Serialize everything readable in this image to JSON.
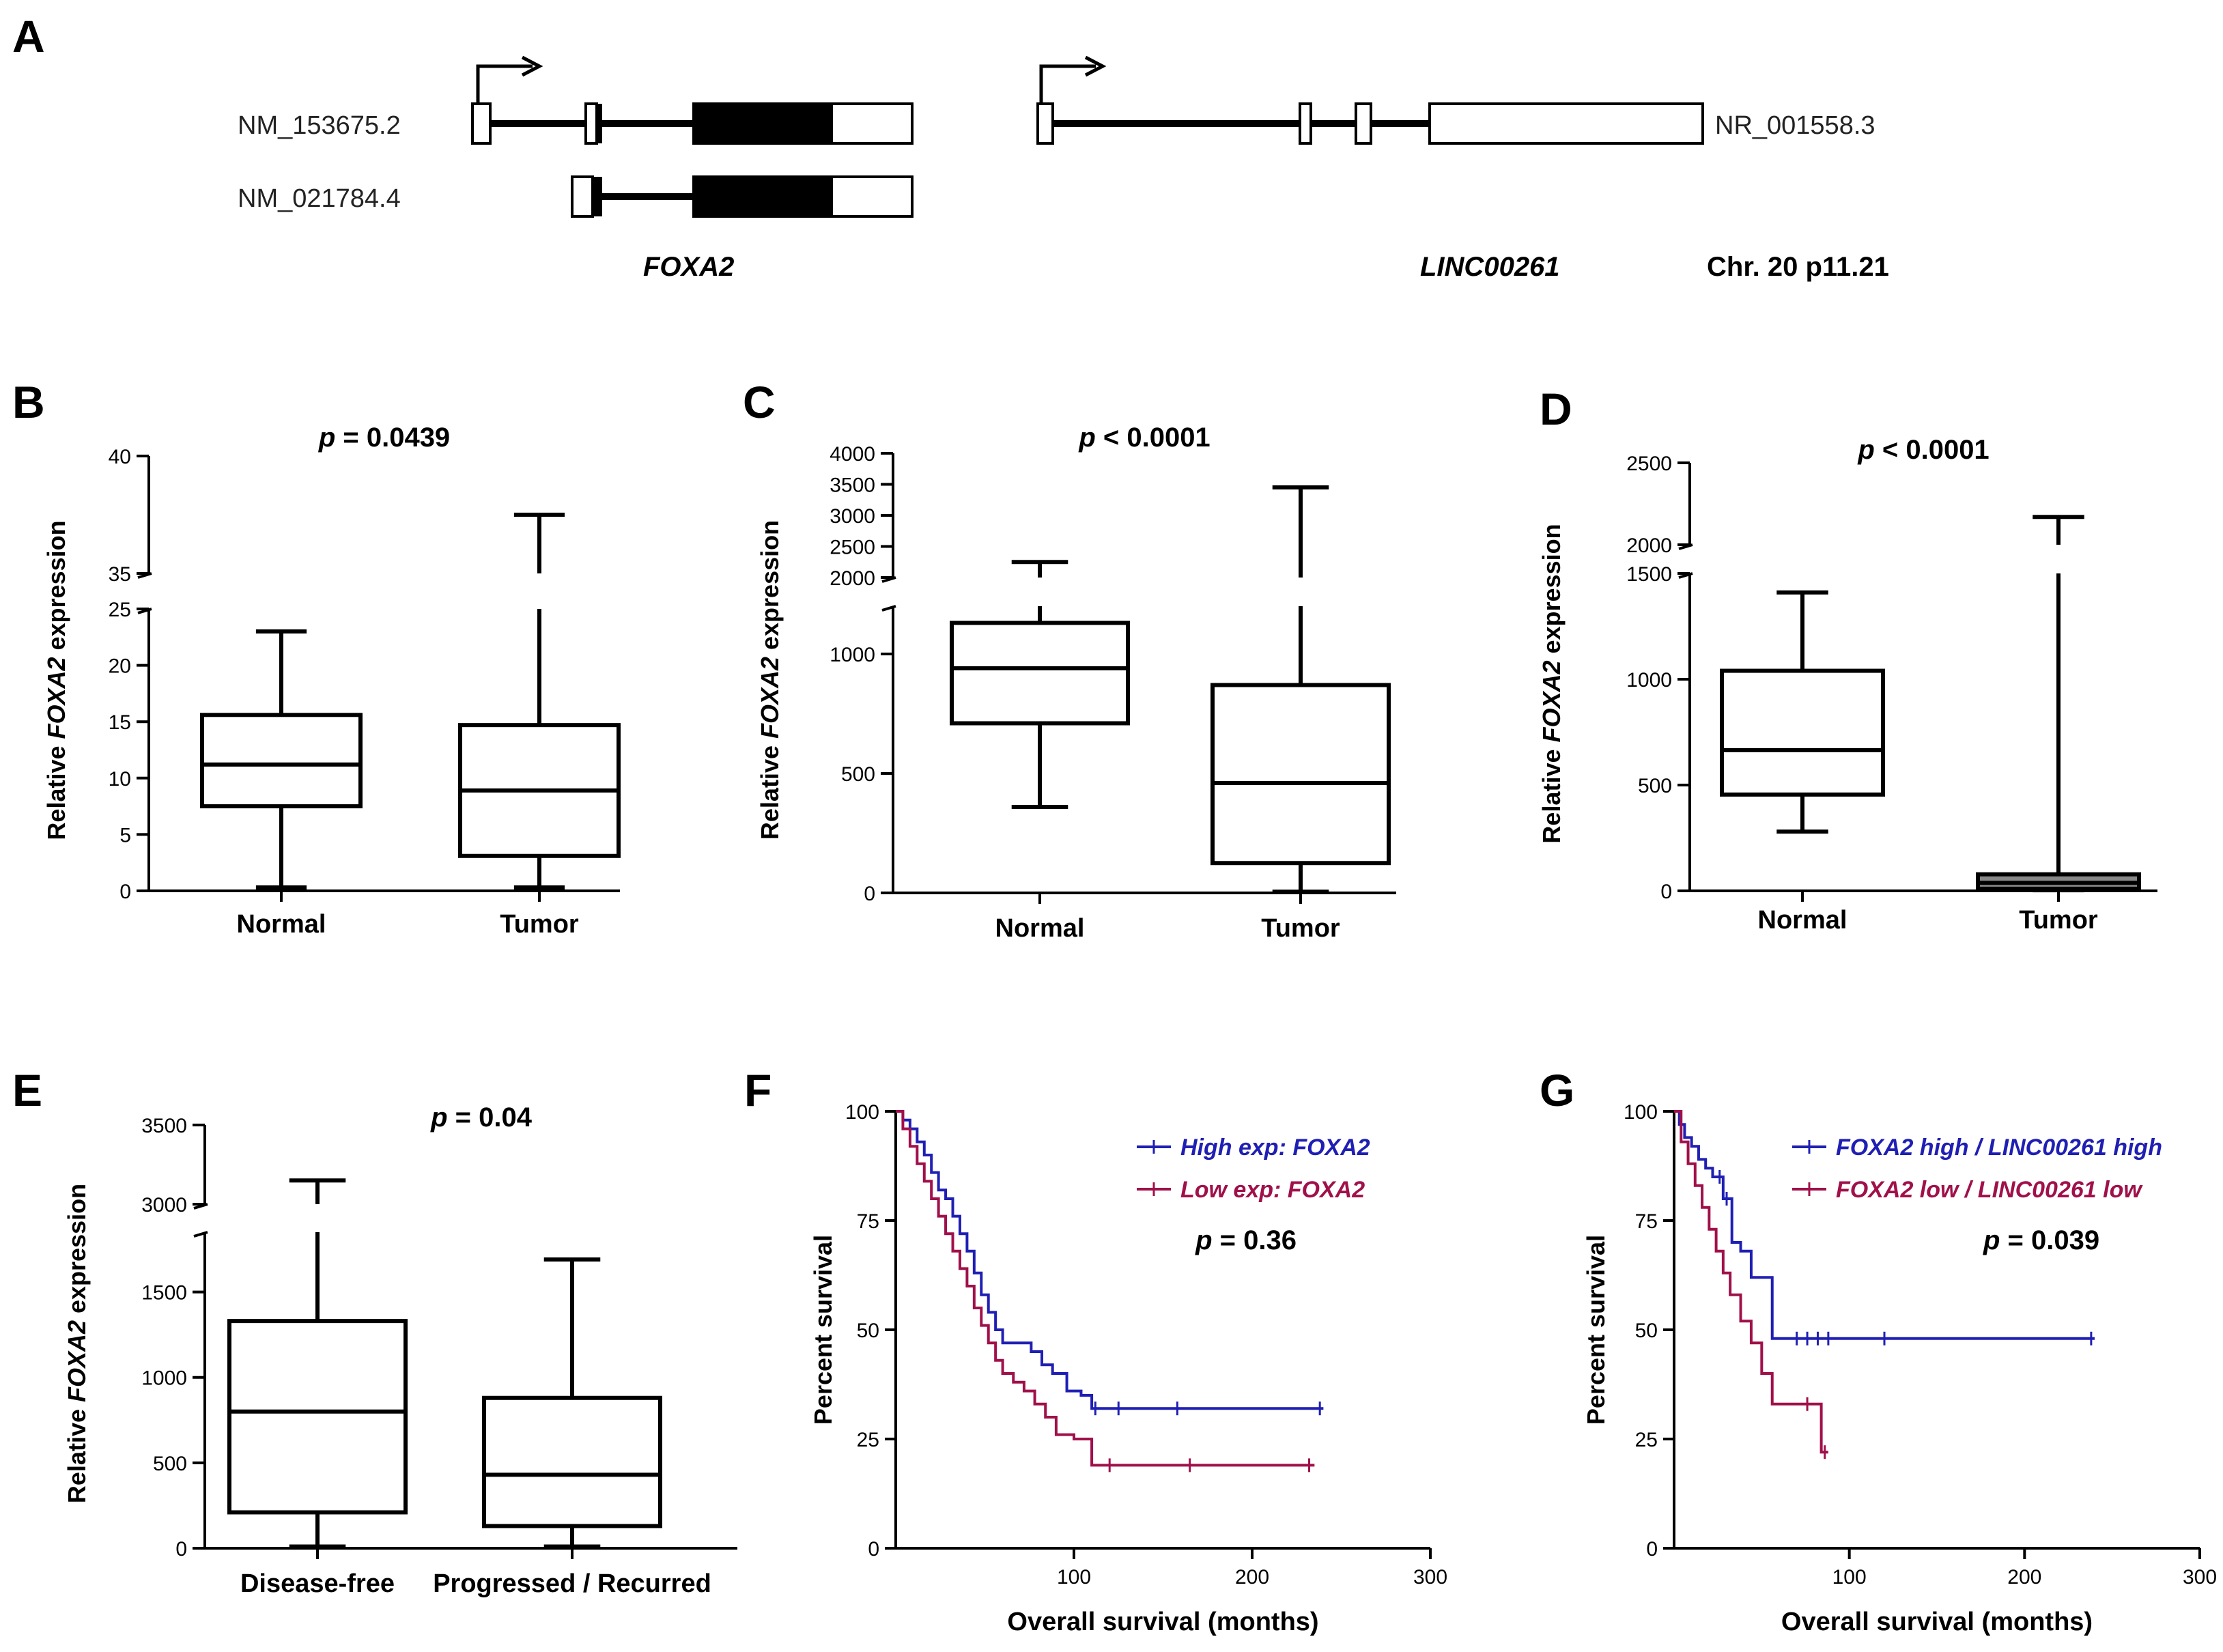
{
  "panel_a": {
    "label": "A",
    "transcripts": [
      "NM_153675.2",
      "NM_021784.4",
      "NR_001558.3"
    ],
    "genes": [
      "FOXA2",
      "LINC00261"
    ],
    "locus": "Chr. 20 p11.21"
  },
  "chart_data": [
    {
      "panel": "B",
      "type": "box",
      "p_text": "p = 0.0439",
      "ylabel": "Relative FOXA2 expression",
      "ylabel_gene": "FOXA2",
      "categories": [
        "Normal",
        "Tumor"
      ],
      "y_break": true,
      "y_lower": {
        "range": [
          0,
          25
        ],
        "ticks": [
          0,
          5,
          10,
          15,
          20,
          25
        ]
      },
      "y_upper": {
        "range": [
          35,
          40
        ],
        "ticks": [
          35,
          40
        ]
      },
      "boxes": [
        {
          "min": 0.3,
          "q1": 7.5,
          "median": 11.2,
          "q3": 15.6,
          "max": 23.0
        },
        {
          "min": 0.3,
          "q1": 3.1,
          "median": 8.9,
          "q3": 14.7,
          "max": 37.5
        }
      ]
    },
    {
      "panel": "C",
      "type": "box",
      "p_text": "p < 0.0001",
      "ylabel": "Relative FOXA2 expression",
      "ylabel_gene": "FOXA2",
      "categories": [
        "Normal",
        "Tumor"
      ],
      "y_break": true,
      "y_lower": {
        "range": [
          0,
          1200
        ],
        "ticks": [
          0,
          500,
          1000
        ]
      },
      "y_upper": {
        "range": [
          2000,
          4000
        ],
        "ticks": [
          2000,
          2500,
          3000,
          3500,
          4000
        ]
      },
      "boxes": [
        {
          "min": 360,
          "q1": 710,
          "median": 940,
          "q3": 1130,
          "max": 2250
        },
        {
          "min": 5,
          "q1": 125,
          "median": 460,
          "q3": 870,
          "max": 3450
        }
      ]
    },
    {
      "panel": "D",
      "type": "box",
      "p_text": "p < 0.0001",
      "ylabel": "Relative FOXA2 expression",
      "ylabel_gene": "FOXA2",
      "categories": [
        "Normal",
        "Tumor"
      ],
      "y_break": true,
      "y_lower": {
        "range": [
          0,
          1500
        ],
        "ticks": [
          0,
          500,
          1000,
          1500
        ]
      },
      "y_upper": {
        "range": [
          2000,
          2500
        ],
        "ticks": [
          2000,
          2500
        ]
      },
      "boxes": [
        {
          "min": 280,
          "q1": 455,
          "median": 665,
          "q3": 1040,
          "max": 1410
        },
        {
          "min": 3,
          "q1": 10,
          "median": 38,
          "q3": 78,
          "max": 2170
        }
      ]
    },
    {
      "panel": "E",
      "type": "box",
      "p_text": "p = 0.04",
      "ylabel": "Relative FOXA2 expression",
      "ylabel_gene": "FOXA2",
      "categories": [
        "Disease-free",
        "Progressed / Recurred"
      ],
      "y_break": true,
      "y_lower": {
        "range": [
          0,
          1850
        ],
        "ticks": [
          0,
          500,
          1000,
          1500
        ]
      },
      "y_upper": {
        "range": [
          3000,
          3500
        ],
        "ticks": [
          3000,
          3500
        ]
      },
      "boxes": [
        {
          "min": 10,
          "q1": 210,
          "median": 800,
          "q3": 1330,
          "max": 3150
        },
        {
          "min": 10,
          "q1": 130,
          "median": 430,
          "q3": 880,
          "max": 1690
        }
      ]
    },
    {
      "panel": "F",
      "type": "line",
      "p_text": "p = 0.36",
      "xlabel": "Overall survival (months)",
      "ylabel": "Percent survival",
      "xlim": [
        0,
        300
      ],
      "ylim": [
        0,
        100
      ],
      "xticks": [
        100,
        200,
        300
      ],
      "yticks": [
        0,
        25,
        50,
        75,
        100
      ],
      "series": [
        {
          "name": "High exp: FOXA2",
          "color": "#1f1fb4",
          "x": [
            0,
            4,
            8,
            12,
            16,
            20,
            24,
            28,
            32,
            36,
            40,
            44,
            48,
            52,
            56,
            60,
            64,
            70,
            76,
            82,
            88,
            96,
            104,
            110,
            240
          ],
          "y": [
            100,
            98,
            96,
            93,
            90,
            86,
            82,
            80,
            76,
            72,
            68,
            63,
            58,
            54,
            50,
            47,
            47,
            47,
            45,
            42,
            40,
            36,
            35,
            32,
            32
          ],
          "censor_x": [
            112,
            125,
            158,
            238
          ]
        },
        {
          "name": "Low exp: FOXA2",
          "color": "#a0104a",
          "x": [
            0,
            4,
            8,
            12,
            16,
            20,
            24,
            28,
            32,
            36,
            40,
            44,
            48,
            52,
            56,
            60,
            66,
            72,
            78,
            84,
            90,
            100,
            110,
            235
          ],
          "y": [
            100,
            96,
            92,
            88,
            84,
            80,
            76,
            72,
            68,
            64,
            60,
            55,
            51,
            47,
            43,
            40,
            38,
            36,
            33,
            30,
            26,
            25,
            19,
            19
          ],
          "censor_x": [
            120,
            165,
            232
          ]
        }
      ]
    },
    {
      "panel": "G",
      "type": "line",
      "p_text": "p = 0.039",
      "xlabel": "Overall survival (months)",
      "ylabel": "Percent survival",
      "xlim": [
        0,
        300
      ],
      "ylim": [
        0,
        100
      ],
      "xticks": [
        100,
        200,
        300
      ],
      "yticks": [
        0,
        25,
        50,
        75,
        100
      ],
      "series": [
        {
          "name": "FOXA2 high / LINC00261 high",
          "color": "#1f1fb4",
          "x": [
            0,
            3,
            6,
            10,
            14,
            18,
            22,
            28,
            33,
            38,
            44,
            50,
            56,
            240
          ],
          "y": [
            100,
            97,
            94,
            92,
            89,
            87,
            85,
            80,
            70,
            68,
            62,
            62,
            48,
            48
          ],
          "censor_x": [
            26,
            30,
            70,
            76,
            82,
            88,
            120,
            238
          ]
        },
        {
          "name": "FOXA2 low / LINC00261 low",
          "color": "#a0104a",
          "x": [
            0,
            4,
            8,
            12,
            16,
            20,
            24,
            28,
            32,
            38,
            44,
            50,
            56,
            62,
            70,
            78,
            84,
            88
          ],
          "y": [
            100,
            93,
            88,
            83,
            78,
            73,
            68,
            63,
            58,
            52,
            47,
            40,
            33,
            33,
            33,
            33,
            22,
            22
          ],
          "censor_x": [
            76,
            86
          ]
        }
      ]
    }
  ]
}
